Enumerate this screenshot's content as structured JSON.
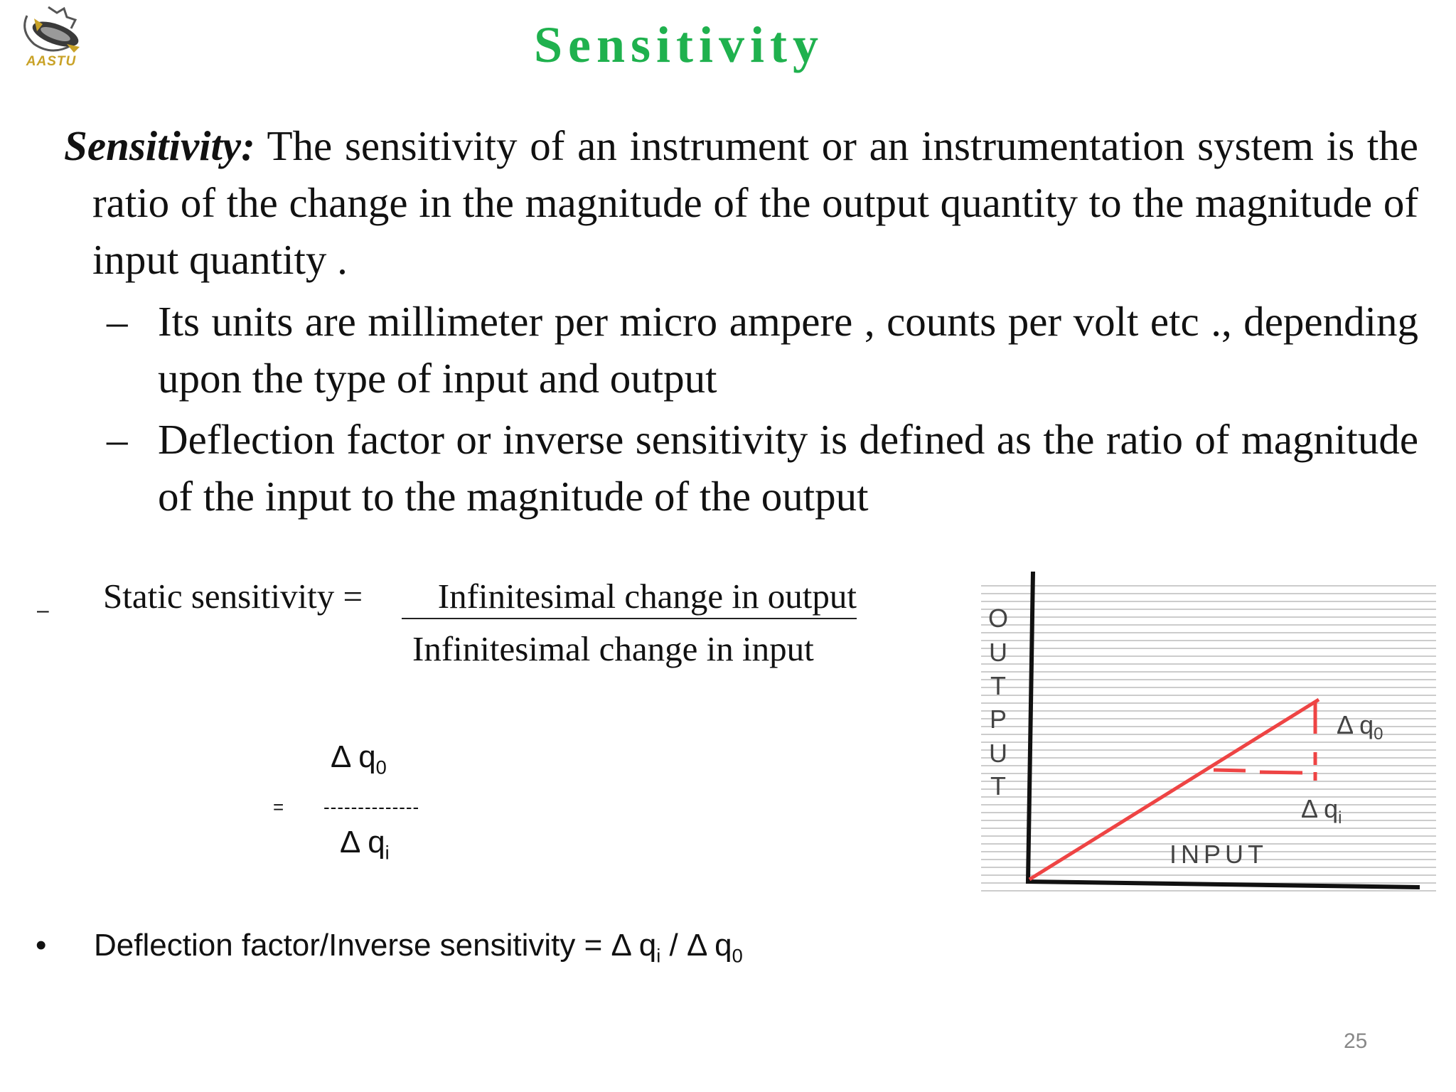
{
  "logo": {
    "text": "AASTU"
  },
  "title": "Sensitivity",
  "definition": {
    "term": "Sensitivity:",
    "text": " The sensitivity of an instrument or an instrumentation system is the ratio of the change in the magnitude of the output quantity to the magnitude of input quantity ."
  },
  "bullets": [
    {
      "marker": "–",
      "text": "Its units are millimeter per micro ampere , counts per volt etc ., depending upon the type of input and output"
    },
    {
      "marker": "–",
      "text": "Deflection factor or inverse sensitivity is defined as the ratio of magnitude of the input to the magnitude of the output"
    }
  ],
  "formula": {
    "marker": "–",
    "label": "Static sensitivity =",
    "numerator": "Infinitesimal change in output",
    "denominator": "Infinitesimal change in input",
    "delta_q": "Δ q",
    "sub_0": "0",
    "sub_i": "i",
    "equals": "=",
    "fraction_line": "--------------"
  },
  "deflection_line": {
    "marker": "•",
    "text": "Deflection factor/Inverse sensitivity = ",
    "slash": " / "
  },
  "graph": {
    "y_axis_letters": [
      "O",
      "U",
      "T",
      "P",
      "U",
      "T"
    ],
    "x_axis_label": "INPUT",
    "delta_q0_label": "Δ q",
    "delta_q0_sub": "0",
    "delta_qi_label": "Δ q",
    "delta_qi_sub": "i",
    "line_color": "#ee4444",
    "axis_color": "#111111",
    "grid_color": "#cccccc"
  },
  "page_number": "25"
}
